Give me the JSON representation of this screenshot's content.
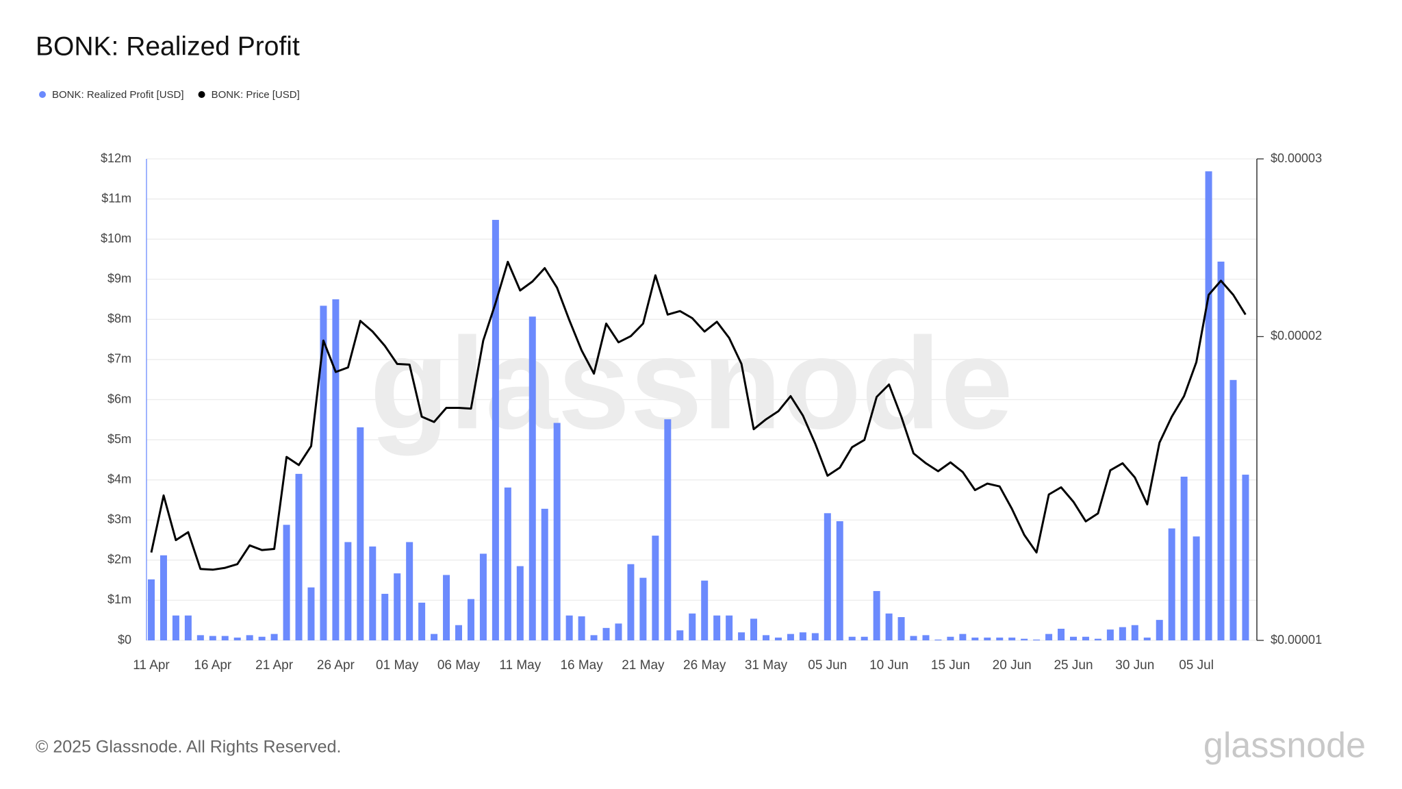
{
  "chart_data": {
    "type": "bar",
    "title": "BONK: Realized Profit",
    "categories": [
      "11 Apr",
      null,
      null,
      null,
      null,
      "16 Apr",
      null,
      null,
      null,
      null,
      "21 Apr",
      null,
      null,
      null,
      null,
      "26 Apr",
      null,
      null,
      null,
      null,
      "01 May",
      null,
      null,
      null,
      null,
      "06 May",
      null,
      null,
      null,
      null,
      "11 May",
      null,
      null,
      null,
      null,
      "16 May",
      null,
      null,
      null,
      null,
      "21 May",
      null,
      null,
      null,
      null,
      "26 May",
      null,
      null,
      null,
      null,
      "31 May",
      null,
      null,
      null,
      null,
      "05 Jun",
      null,
      null,
      null,
      null,
      "10 Jun",
      null,
      null,
      null,
      null,
      "15 Jun",
      null,
      null,
      null,
      null,
      "20 Jun",
      null,
      null,
      null,
      null,
      "25 Jun",
      null,
      null,
      null,
      null,
      "30 Jun",
      null,
      null,
      null,
      null,
      "05 Jul",
      null,
      null,
      null,
      null
    ],
    "series": [
      {
        "name": "BONK: Realized Profit [USD]",
        "type": "bar",
        "color": "#6b8afd",
        "values": [
          1520000,
          2120000,
          620000,
          620000,
          130000,
          110000,
          110000,
          70000,
          130000,
          90000,
          160000,
          2880000,
          4150000,
          1320000,
          8340000,
          8500000,
          2450000,
          5310000,
          2340000,
          1160000,
          1670000,
          2450000,
          940000,
          160000,
          1630000,
          380000,
          1030000,
          2160000,
          10480000,
          3810000,
          1850000,
          8070000,
          3280000,
          5420000,
          620000,
          600000,
          130000,
          310000,
          420000,
          1900000,
          1560000,
          2610000,
          5510000,
          250000,
          670000,
          1490000,
          620000,
          620000,
          200000,
          540000,
          130000,
          70000,
          160000,
          200000,
          180000,
          3170000,
          2970000,
          90000,
          90000,
          1230000,
          670000,
          580000,
          110000,
          130000,
          20000,
          90000,
          160000,
          70000,
          70000,
          70000,
          70000,
          40000,
          20000,
          160000,
          290000,
          90000,
          90000,
          40000,
          270000,
          330000,
          380000,
          70000,
          510000,
          2790000,
          4080000,
          2590000,
          11690000,
          9440000,
          6490000,
          4130000
        ]
      },
      {
        "name": "BONK: Price [USD]",
        "type": "line",
        "color": "#000000",
        "axis": "y2",
        "values": [
          1.222e-05,
          1.392e-05,
          1.257e-05,
          1.28e-05,
          1.177e-05,
          1.175e-05,
          1.18e-05,
          1.19e-05,
          1.242e-05,
          1.229e-05,
          1.232e-05,
          1.52e-05,
          1.492e-05,
          1.558e-05,
          1.982e-05,
          1.845e-05,
          1.864e-05,
          2.073e-05,
          2.023e-05,
          1.958e-05,
          1.879e-05,
          1.876e-05,
          1.666e-05,
          1.646e-05,
          1.7e-05,
          1.7e-05,
          1.697e-05,
          1.982e-05,
          2.159e-05,
          2.372e-05,
          2.222e-05,
          2.268e-05,
          2.338e-05,
          2.236e-05,
          2.077e-05,
          1.938e-05,
          1.838e-05,
          2.06e-05,
          1.974e-05,
          2.002e-05,
          2.06e-05,
          2.3e-05,
          2.103e-05,
          2.12e-05,
          2.086e-05,
          2.023e-05,
          2.069e-05,
          1.994e-05,
          1.879e-05,
          1.619e-05,
          1.656e-05,
          1.687e-05,
          1.746e-05,
          1.67e-05,
          1.567e-05,
          1.456e-05,
          1.483e-05,
          1.554e-05,
          1.58e-05,
          1.743e-05,
          1.793e-05,
          1.666e-05,
          1.532e-05,
          1.498e-05,
          1.471e-05,
          1.501e-05,
          1.468e-05,
          1.409e-05,
          1.43e-05,
          1.421e-05,
          1.35e-05,
          1.272e-05,
          1.222e-05,
          1.395e-05,
          1.418e-05,
          1.372e-05,
          1.312e-05,
          1.336e-05,
          1.474e-05,
          1.498e-05,
          1.45e-05,
          1.364e-05,
          1.57e-05,
          1.666e-05,
          1.746e-05,
          1.887e-05,
          2.2e-05,
          2.272e-05,
          2.2e-05,
          2.103e-05
        ]
      }
    ],
    "ylim": [
      0,
      12000000
    ],
    "yticks": [
      {
        "value": 0,
        "label": "$0"
      },
      {
        "value": 1000000,
        "label": "$1m"
      },
      {
        "value": 2000000,
        "label": "$2m"
      },
      {
        "value": 3000000,
        "label": "$3m"
      },
      {
        "value": 4000000,
        "label": "$4m"
      },
      {
        "value": 5000000,
        "label": "$5m"
      },
      {
        "value": 6000000,
        "label": "$6m"
      },
      {
        "value": 7000000,
        "label": "$7m"
      },
      {
        "value": 8000000,
        "label": "$8m"
      },
      {
        "value": 9000000,
        "label": "$9m"
      },
      {
        "value": 10000000,
        "label": "$10m"
      },
      {
        "value": 11000000,
        "label": "$11m"
      },
      {
        "value": 12000000,
        "label": "$12m"
      }
    ],
    "y2lim": [
      1e-05,
      3e-05
    ],
    "y2ticks": [
      {
        "value": 1e-05,
        "label": "$0.00001"
      },
      {
        "value": 2e-05,
        "label": "$0.00002"
      },
      {
        "value": 3e-05,
        "label": "$0.00003"
      }
    ],
    "y2scale": "log",
    "grid": true,
    "legend": "top-left",
    "watermark": "glassnode"
  },
  "footer": {
    "copyright": "© 2025 Glassnode. All Rights Reserved.",
    "logo": "glassnode"
  }
}
